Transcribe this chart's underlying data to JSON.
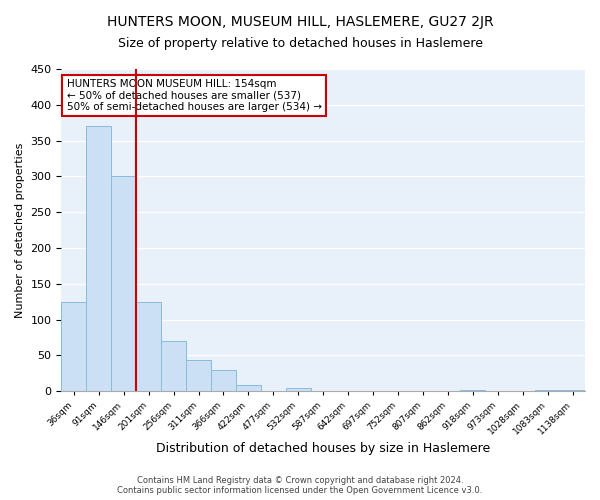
{
  "title": "HUNTERS MOON, MUSEUM HILL, HASLEMERE, GU27 2JR",
  "subtitle": "Size of property relative to detached houses in Haslemere",
  "xlabel": "Distribution of detached houses by size in Haslemere",
  "ylabel": "Number of detached properties",
  "bar_labels": [
    "36sqm",
    "91sqm",
    "146sqm",
    "201sqm",
    "256sqm",
    "311sqm",
    "366sqm",
    "422sqm",
    "477sqm",
    "532sqm",
    "587sqm",
    "642sqm",
    "697sqm",
    "752sqm",
    "807sqm",
    "862sqm",
    "918sqm",
    "973sqm",
    "1028sqm",
    "1083sqm",
    "1138sqm"
  ],
  "bar_values": [
    125,
    370,
    300,
    125,
    70,
    44,
    29,
    9,
    0,
    5,
    0,
    0,
    0,
    0,
    0,
    0,
    2,
    0,
    0,
    2,
    2
  ],
  "bar_color": "#cce0f5",
  "bar_edge_color": "#88bbdd",
  "vline_x": 2.5,
  "vline_color": "#cc0000",
  "ylim": [
    0,
    450
  ],
  "yticks": [
    0,
    50,
    100,
    150,
    200,
    250,
    300,
    350,
    400,
    450
  ],
  "annotation_title": "HUNTERS MOON MUSEUM HILL: 154sqm",
  "annotation_line1": "← 50% of detached houses are smaller (537)",
  "annotation_line2": "50% of semi-detached houses are larger (534) →",
  "annotation_box_color": "#cc0000",
  "footer_line1": "Contains HM Land Registry data © Crown copyright and database right 2024.",
  "footer_line2": "Contains public sector information licensed under the Open Government Licence v3.0.",
  "bg_color": "#e8f0fa",
  "fig_bg_color": "#ffffff",
  "title_fontsize": 10,
  "subtitle_fontsize": 9
}
